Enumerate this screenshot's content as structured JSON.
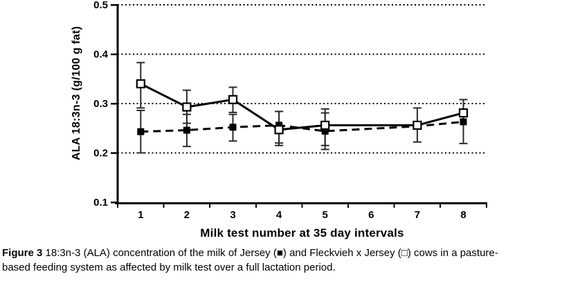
{
  "figure": {
    "caption": {
      "prefix": "Figure 3",
      "line1": " 18:3n-3 (ALA) concentration of the milk of Jersey (■) and Fleckvieh x Jersey (□) cows in a pasture-",
      "line2": "based feeding system as affected by milk test over a full lactation period."
    }
  },
  "chart_data": {
    "type": "line",
    "title": "",
    "xlabel": "Milk test number at 35 day intervals",
    "ylabel": "ALA 18:3n-3 (g/100 g fat)",
    "categories": [
      "1",
      "2",
      "3",
      "4",
      "5",
      "6",
      "7",
      "8"
    ],
    "ylim": [
      0.1,
      0.5
    ],
    "ytick_labels": [
      "0.1",
      "0.2",
      "0.3",
      "0.4",
      "0.5"
    ],
    "grid": {
      "horizontal_dotted_at": [
        0.2,
        0.3,
        0.4,
        0.5
      ]
    },
    "legend_position": "none (markers explained in caption)",
    "axis_color": "#000000",
    "error_bar_color": "#2b2b2b",
    "series": [
      {
        "name": "Jersey",
        "marker": "filled-square",
        "line_style": "dashed",
        "color": "#000000",
        "values": [
          0.243,
          0.246,
          0.252,
          0.256,
          0.244,
          null,
          0.254,
          0.263
        ],
        "error_hi": [
          0.286,
          0.278,
          0.278,
          0.284,
          0.281,
          null,
          null,
          0.281
        ],
        "error_lo": [
          0.2,
          0.213,
          0.224,
          0.215,
          0.207,
          null,
          null,
          0.219
        ]
      },
      {
        "name": "Fleckvieh x Jersey",
        "marker": "open-square",
        "line_style": "solid",
        "color": "#000000",
        "values": [
          0.34,
          0.293,
          0.308,
          0.247,
          0.256,
          null,
          0.256,
          0.281
        ],
        "error_hi": [
          0.383,
          0.327,
          0.333,
          0.284,
          0.289,
          null,
          0.291,
          0.308
        ],
        "error_lo": [
          0.291,
          0.26,
          0.282,
          0.22,
          0.215,
          null,
          0.222,
          null
        ]
      }
    ]
  }
}
